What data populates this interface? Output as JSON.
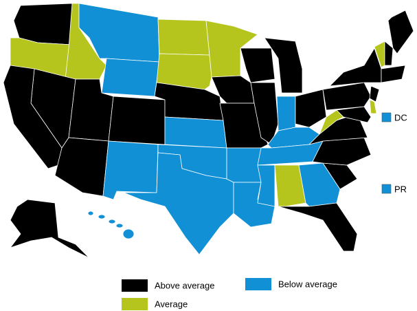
{
  "legend": [
    {
      "label": "Above average",
      "color": "#000000"
    },
    {
      "label": "Average",
      "color": "#b5c51e"
    },
    {
      "label": "Below average",
      "color": "#1190d6"
    }
  ],
  "territories": [
    {
      "label": "DC"
    },
    {
      "label": "PR"
    }
  ]
}
